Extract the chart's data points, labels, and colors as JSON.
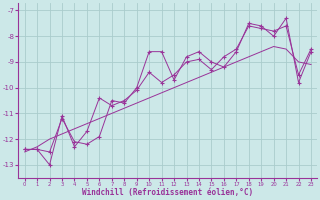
{
  "xlabel": "Windchill (Refroidissement éolien,°C)",
  "x_data": [
    0,
    1,
    2,
    3,
    4,
    5,
    6,
    7,
    8,
    9,
    10,
    11,
    12,
    13,
    14,
    15,
    16,
    17,
    18,
    19,
    20,
    21,
    22,
    23
  ],
  "y_series1": [
    -12.4,
    -12.4,
    -12.5,
    -11.2,
    -12.1,
    -12.2,
    -11.9,
    -10.5,
    -10.6,
    -10.0,
    -8.6,
    -8.6,
    -9.7,
    -8.8,
    -8.6,
    -9.0,
    -9.2,
    -8.6,
    -7.5,
    -7.6,
    -8.0,
    -7.3,
    -9.8,
    -8.6
  ],
  "y_series2": [
    -12.4,
    -12.4,
    -13.0,
    -11.1,
    -12.3,
    -11.7,
    -10.4,
    -10.7,
    -10.5,
    -10.1,
    -9.4,
    -9.8,
    -9.5,
    -9.0,
    -8.9,
    -9.3,
    -8.8,
    -8.5,
    -7.6,
    -7.7,
    -7.8,
    -7.6,
    -9.5,
    -8.5
  ],
  "y_trend": [
    -12.5,
    -12.3,
    -12.0,
    -11.8,
    -11.6,
    -11.4,
    -11.2,
    -11.0,
    -10.8,
    -10.6,
    -10.4,
    -10.2,
    -10.0,
    -9.8,
    -9.6,
    -9.4,
    -9.2,
    -9.0,
    -8.8,
    -8.6,
    -8.4,
    -8.5,
    -9.0,
    -9.1
  ],
  "bg_color": "#cce8e8",
  "grid_color": "#aacccc",
  "line_color": "#993399",
  "ylim": [
    -13.5,
    -6.7
  ],
  "xlim": [
    -0.5,
    23.5
  ],
  "yticks": [
    -13,
    -12,
    -11,
    -10,
    -9,
    -8,
    -7
  ]
}
